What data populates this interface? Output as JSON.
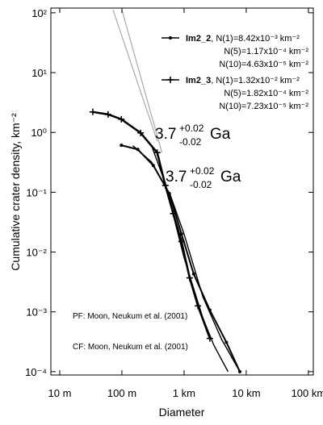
{
  "chart_data": {
    "type": "scatter",
    "xlabel": "Diameter",
    "ylabel": "Cumulative crater density, km⁻²",
    "xscale": "log",
    "yscale": "log",
    "xlim": [
      0.0072,
      120
    ],
    "ylim": [
      8.8e-05,
      120
    ],
    "xticks": [
      {
        "value": 0.01,
        "label": "10 m"
      },
      {
        "value": 0.1,
        "label": "100 m"
      },
      {
        "value": 1,
        "label": "1 km"
      },
      {
        "value": 10,
        "label": "10 km"
      },
      {
        "value": 100,
        "label": "100 km"
      }
    ],
    "yticks": [
      {
        "value": 0.0001,
        "label": "10⁻⁴"
      },
      {
        "value": 0.001,
        "label": "10⁻³"
      },
      {
        "value": 0.01,
        "label": "10⁻²"
      },
      {
        "value": 0.1,
        "label": "10⁻¹"
      },
      {
        "value": 1,
        "label": "10⁰"
      },
      {
        "value": 10,
        "label": "10¹"
      },
      {
        "value": 100,
        "label": "10²"
      }
    ],
    "series": [
      {
        "name": "Im2_2",
        "color": "#000000",
        "marker": "dot",
        "x": [
          0.098,
          0.18,
          0.32,
          0.58,
          0.91,
          1.43,
          2.6,
          4.8,
          7.9
        ],
        "values": [
          0.61,
          0.52,
          0.28,
          0.095,
          0.02,
          0.0043,
          0.00107,
          0.00031,
          0.0001
        ],
        "notes": [
          "N(1)=8.42x10⁻³ km⁻²",
          "N(5)=1.17x10⁻⁴ km⁻²",
          "N(10)=4.63x10⁻⁵ km⁻²"
        ]
      },
      {
        "name": "Im2_3",
        "color": "#000000",
        "marker": "plus",
        "x": [
          0.034,
          0.06,
          0.098,
          0.2,
          0.37,
          0.5,
          0.67,
          0.91,
          1.23,
          1.67,
          2.6
        ],
        "values": [
          2.2,
          2.0,
          1.66,
          0.98,
          0.46,
          0.13,
          0.044,
          0.015,
          0.0037,
          0.00126,
          0.00036
        ],
        "notes": [
          "N(1)=1.32x10⁻² km⁻²",
          "N(5)=1.82x10⁻⁴ km⁻²",
          "N(10)=7.23x10⁻⁵ km⁻²"
        ]
      }
    ],
    "lines": [
      {
        "color": "#000000",
        "x": [
          0.15,
          0.3,
          0.6,
          1,
          2,
          4,
          7.9
        ],
        "values": [
          0.6,
          0.32,
          0.09,
          0.02,
          0.0018,
          0.00035,
          0.0001
        ]
      },
      {
        "color": "#000000",
        "x": [
          0.3,
          0.5,
          1,
          2,
          3,
          5.1
        ],
        "values": [
          0.6,
          0.14,
          0.008,
          0.0008,
          0.00028,
          0.0001
        ]
      },
      {
        "color": "#aaaaaa",
        "x": [
          0.072,
          0.37
        ],
        "values": [
          112,
          0.72
        ]
      },
      {
        "color": "#aaaaaa",
        "x": [
          0.1,
          0.44
        ],
        "values": [
          112,
          0.46
        ]
      }
    ],
    "annotations": [
      {
        "text": "3.7",
        "sup": "+0.02",
        "sub": "-0.02",
        "unit": "Ga"
      },
      {
        "text": "3.7",
        "sup": "+0.02",
        "sub": "-0.02",
        "unit": "Ga"
      }
    ],
    "footnotes": [
      "PF: Moon, Neukum et al. (2001)",
      "CF: Moon, Neukum et al. (2001)"
    ]
  }
}
